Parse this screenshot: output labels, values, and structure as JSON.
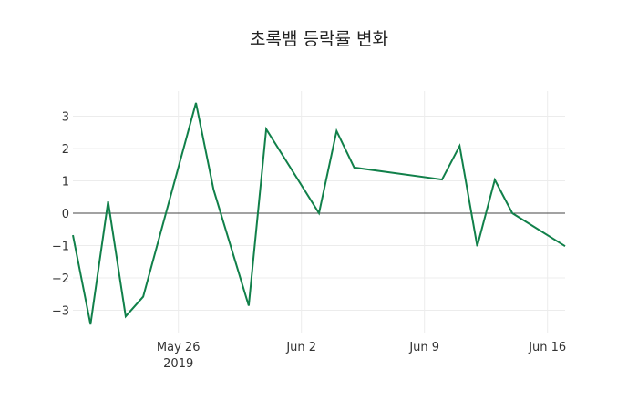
{
  "chart_data": {
    "type": "line",
    "title": "초록뱀 등락률 변화",
    "xlabel": "",
    "ylabel": "",
    "line_color": "#11804a",
    "grid": true,
    "legend": null,
    "ylim": [
      -3.7,
      3.8
    ],
    "xlim": [
      "2019-05-20",
      "2019-06-17"
    ],
    "y_ticks": [
      3,
      2,
      1,
      0,
      -1,
      -2,
      -3
    ],
    "y_tick_labels": [
      "3",
      "2",
      "1",
      "0",
      "−1",
      "−2",
      "−3"
    ],
    "x_ticks": [
      {
        "date": "2019-05-26",
        "label": "May 26",
        "sublabel": "2019"
      },
      {
        "date": "2019-06-02",
        "label": "Jun 2",
        "sublabel": ""
      },
      {
        "date": "2019-06-09",
        "label": "Jun 9",
        "sublabel": ""
      },
      {
        "date": "2019-06-16",
        "label": "Jun 16",
        "sublabel": ""
      }
    ],
    "x": [
      "2019-05-20",
      "2019-05-21",
      "2019-05-22",
      "2019-05-23",
      "2019-05-24",
      "2019-05-27",
      "2019-05-28",
      "2019-05-30",
      "2019-05-31",
      "2019-06-03",
      "2019-06-04",
      "2019-06-05",
      "2019-06-10",
      "2019-06-11",
      "2019-06-12",
      "2019-06-13",
      "2019-06-14",
      "2019-06-17"
    ],
    "values": [
      -0.68,
      -3.44,
      0.36,
      -3.19,
      -2.58,
      3.41,
      0.73,
      -2.86,
      2.6,
      0.0,
      2.54,
      1.41,
      1.04,
      2.08,
      -1.02,
      1.03,
      0.0,
      -1.02
    ]
  }
}
